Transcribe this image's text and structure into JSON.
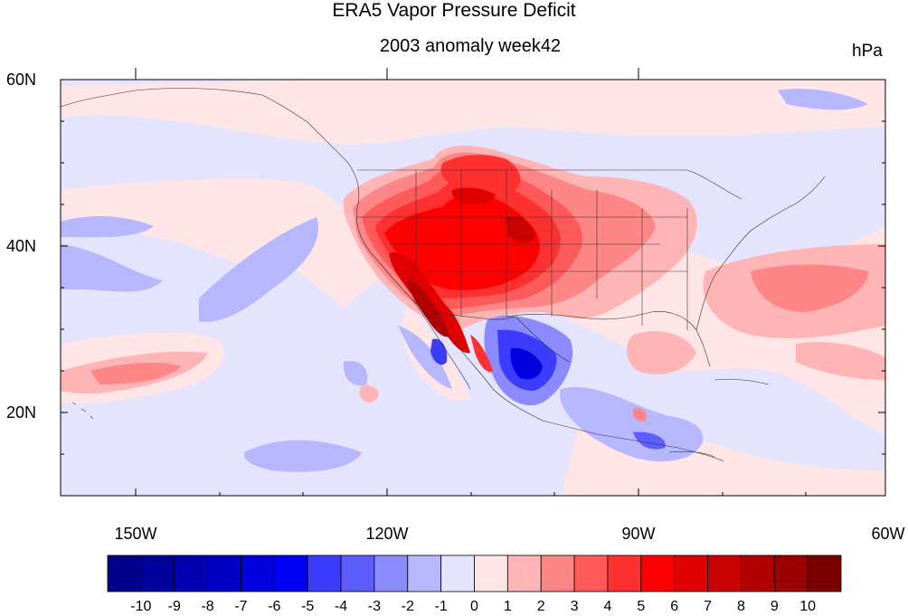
{
  "title": "ERA5 Vapor Pressure Deficit",
  "subtitle": "2003 anomaly week42",
  "units": "hPa",
  "lat_labels": [
    "60N",
    "40N",
    "20N"
  ],
  "lon_labels": [
    "150W",
    "120W",
    "90W",
    "60W"
  ],
  "colorbar": {
    "labels": [
      "-10",
      "-9",
      "-8",
      "-7",
      "-6",
      "-5",
      "-4",
      "-3",
      "-2",
      "-1",
      "0",
      "1",
      "2",
      "3",
      "4",
      "5",
      "6",
      "7",
      "8",
      "9",
      "10"
    ],
    "colors": [
      "#00008b",
      "#00009c",
      "#0000b0",
      "#0000c4",
      "#0000de",
      "#0000f5",
      "#3c3cff",
      "#5d5dff",
      "#8b8bff",
      "#b7b7ff",
      "#e4e4ff",
      "#ffe5e5",
      "#ffb5b5",
      "#ff8686",
      "#ff5a5a",
      "#ff3030",
      "#ff0000",
      "#e00000",
      "#c80000",
      "#b00000",
      "#9a0000",
      "#7a0000"
    ]
  },
  "domain": {
    "lon_min": -160,
    "lon_max": -60,
    "lat_min": 10,
    "lat_max": 60
  }
}
